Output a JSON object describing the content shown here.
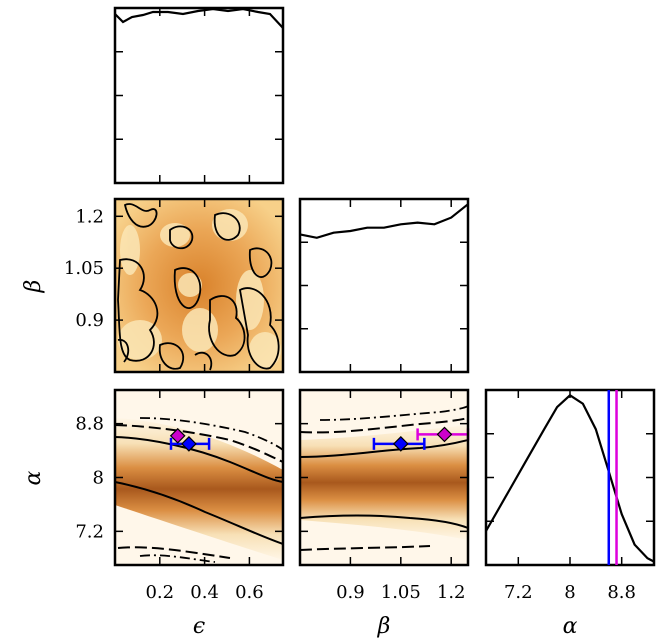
{
  "chart_data": {
    "type": "corner",
    "parameters": [
      {
        "symbol": "ϵ",
        "ticks": [
          0.2,
          0.4,
          0.6
        ],
        "tick_labels": [
          "0.2",
          "0.4",
          "0.6"
        ],
        "range": [
          0.0,
          0.75
        ]
      },
      {
        "symbol": "β",
        "ticks": [
          0.9,
          1.05,
          1.2
        ],
        "tick_labels": [
          "0.9",
          "1.05",
          "1.2"
        ],
        "range": [
          0.75,
          1.25
        ]
      },
      {
        "symbol": "α",
        "ticks": [
          7.2,
          8.0,
          8.8
        ],
        "tick_labels": [
          "7.2",
          "8",
          "8.8"
        ],
        "range": [
          6.7,
          9.3
        ]
      }
    ],
    "panels": {
      "epsilon_hist": {
        "type": "line",
        "x": [
          0.0,
          0.05,
          0.1,
          0.15,
          0.2,
          0.3,
          0.4,
          0.5,
          0.6,
          0.7,
          0.75
        ],
        "y": [
          0.95,
          0.9,
          0.93,
          0.97,
          0.95,
          0.97,
          1.0,
          0.96,
          0.98,
          0.93,
          0.9
        ]
      },
      "beta_hist": {
        "type": "line",
        "x": [
          0.75,
          0.8,
          0.85,
          0.9,
          0.95,
          1.0,
          1.05,
          1.1,
          1.15,
          1.2,
          1.25
        ],
        "y": [
          0.82,
          0.8,
          0.83,
          0.84,
          0.86,
          0.86,
          0.88,
          0.89,
          0.88,
          0.92,
          1.0
        ]
      },
      "alpha_hist": {
        "type": "line",
        "x": [
          6.7,
          7.0,
          7.3,
          7.6,
          7.8,
          8.0,
          8.2,
          8.4,
          8.6,
          8.8,
          9.0,
          9.2,
          9.3
        ],
        "y": [
          0.2,
          0.4,
          0.6,
          0.8,
          0.93,
          1.0,
          0.95,
          0.8,
          0.55,
          0.3,
          0.12,
          0.04,
          0.02
        ]
      },
      "alpha_hist_markers": {
        "blue_line": 8.6,
        "magenta_line": 8.72
      },
      "eps_alpha_points": [
        {
          "color": "#0000ff",
          "x": 0.33,
          "y": 8.5,
          "xerr": [
            0.25,
            0.42
          ]
        },
        {
          "color": "#aa00aa",
          "x": 0.28,
          "y": 8.62
        }
      ],
      "beta_alpha_points": [
        {
          "color": "#0000ff",
          "x": 1.05,
          "y": 8.5,
          "xerr": [
            0.97,
            1.12
          ]
        },
        {
          "color": "#aa00aa",
          "x": 1.18,
          "y": 8.64,
          "xerr": [
            1.1,
            1.25
          ]
        }
      ]
    }
  }
}
